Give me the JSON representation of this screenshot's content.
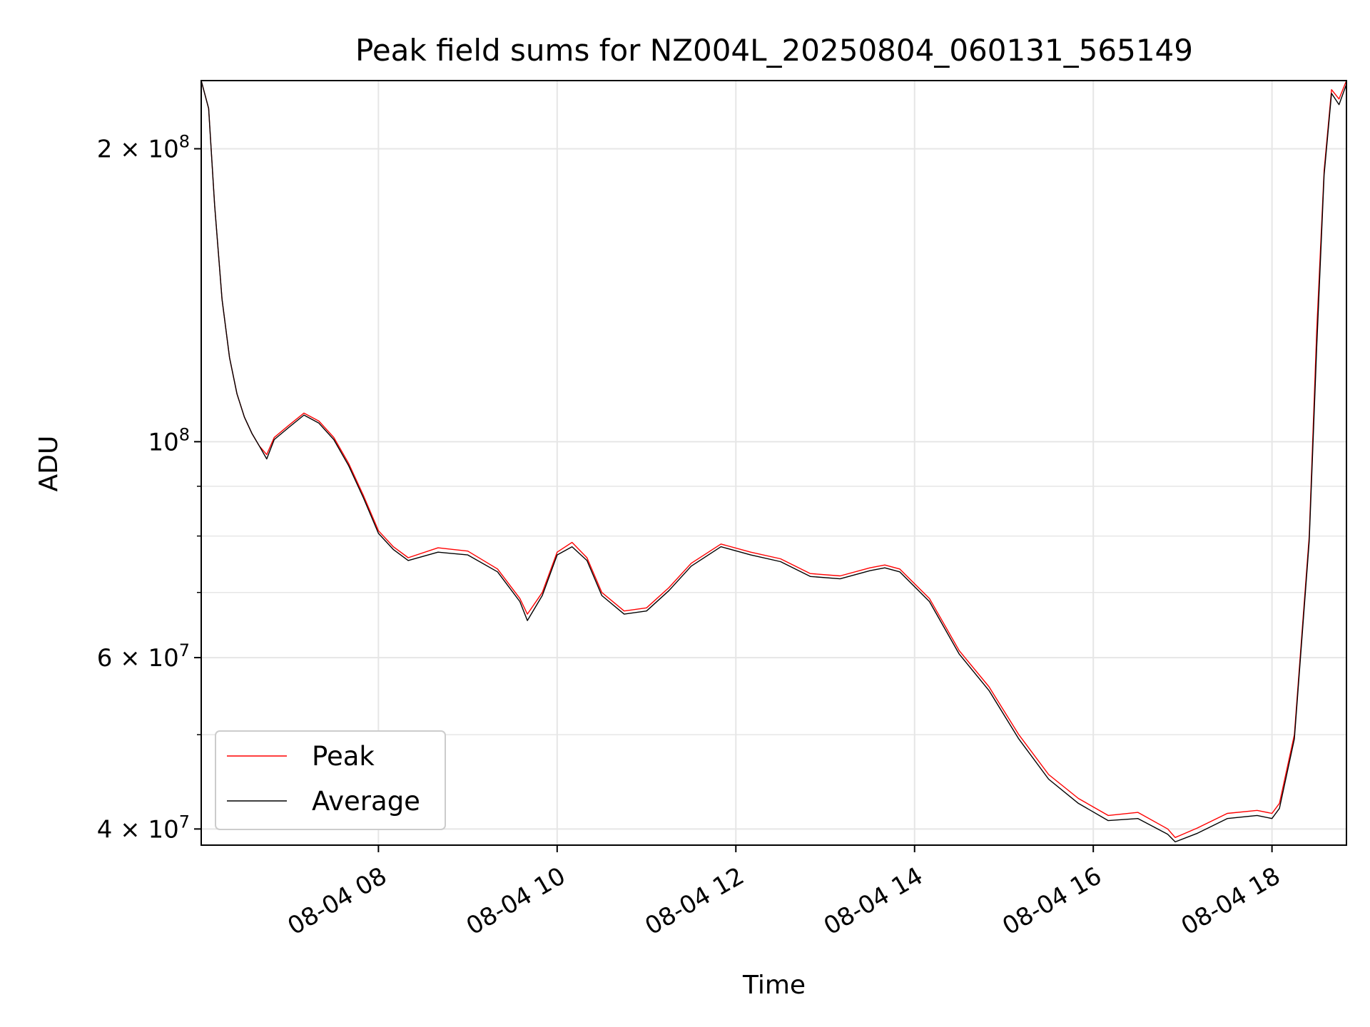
{
  "chart_data": {
    "type": "line",
    "title": "Peak field sums for NZ004L_20250804_060131_565149",
    "xlabel": "Time",
    "ylabel": "ADU",
    "x_ticks": [
      "08-04 08",
      "08-04 10",
      "08-04 12",
      "08-04 14",
      "08-04 16",
      "08-04 18"
    ],
    "y_ticks": [
      {
        "value": 40000000,
        "mantissa": "4",
        "exponent": "7"
      },
      {
        "value": 60000000,
        "mantissa": "6",
        "exponent": "7"
      },
      {
        "value": 100000000,
        "mantissa": "",
        "exponent": "8"
      },
      {
        "value": 200000000,
        "mantissa": "2",
        "exponent": "8"
      }
    ],
    "yscale": "log",
    "xlim": [
      "2025-08-04 06:01",
      "2025-08-04 18:50"
    ],
    "ylim": [
      38500000,
      235000000
    ],
    "grid": true,
    "legend_position": "lower-left",
    "colors": {
      "peak": "#ff0000",
      "average": "#000000",
      "grid": "#e6e6e6"
    },
    "series": [
      {
        "name": "Peak",
        "x": [
          "2025-08-04 06:01",
          "2025-08-04 06:06",
          "2025-08-04 06:10",
          "2025-08-04 06:15",
          "2025-08-04 06:20",
          "2025-08-04 06:25",
          "2025-08-04 06:30",
          "2025-08-04 06:35",
          "2025-08-04 06:40",
          "2025-08-04 06:45",
          "2025-08-04 06:50",
          "2025-08-04 07:00",
          "2025-08-04 07:10",
          "2025-08-04 07:20",
          "2025-08-04 07:30",
          "2025-08-04 07:40",
          "2025-08-04 07:50",
          "2025-08-04 08:00",
          "2025-08-04 08:10",
          "2025-08-04 08:20",
          "2025-08-04 08:40",
          "2025-08-04 09:00",
          "2025-08-04 09:20",
          "2025-08-04 09:35",
          "2025-08-04 09:40",
          "2025-08-04 09:50",
          "2025-08-04 10:00",
          "2025-08-04 10:10",
          "2025-08-04 10:20",
          "2025-08-04 10:30",
          "2025-08-04 10:45",
          "2025-08-04 11:00",
          "2025-08-04 11:15",
          "2025-08-04 11:30",
          "2025-08-04 11:50",
          "2025-08-04 12:10",
          "2025-08-04 12:30",
          "2025-08-04 12:50",
          "2025-08-04 13:10",
          "2025-08-04 13:30",
          "2025-08-04 13:40",
          "2025-08-04 13:50",
          "2025-08-04 14:10",
          "2025-08-04 14:30",
          "2025-08-04 14:50",
          "2025-08-04 15:10",
          "2025-08-04 15:30",
          "2025-08-04 15:50",
          "2025-08-04 16:10",
          "2025-08-04 16:30",
          "2025-08-04 16:50",
          "2025-08-04 16:55",
          "2025-08-04 17:10",
          "2025-08-04 17:30",
          "2025-08-04 17:50",
          "2025-08-04 18:00",
          "2025-08-04 18:05",
          "2025-08-04 18:15",
          "2025-08-04 18:25",
          "2025-08-04 18:30",
          "2025-08-04 18:35",
          "2025-08-04 18:40",
          "2025-08-04 18:45",
          "2025-08-04 18:50"
        ],
        "y": [
          235000000,
          220000000,
          175000000,
          140000000,
          122000000,
          112000000,
          106000000,
          102000000,
          99000000,
          97000000,
          101000000,
          104000000,
          107000000,
          105000000,
          101000000,
          95000000,
          88000000,
          81000000,
          78000000,
          76000000,
          77800000,
          77200000,
          74000000,
          69000000,
          66500000,
          70000000,
          77000000,
          78800000,
          76000000,
          70000000,
          67000000,
          67500000,
          70800000,
          75000000,
          78500000,
          77000000,
          75800000,
          73200000,
          72800000,
          74200000,
          74700000,
          74000000,
          69000000,
          61000000,
          56000000,
          50000000,
          45500000,
          43000000,
          41300000,
          41600000,
          40000000,
          39200000,
          40100000,
          41500000,
          41800000,
          41500000,
          42500000,
          50000000,
          80000000,
          130000000,
          190000000,
          230000000,
          225000000,
          235000000
        ]
      },
      {
        "name": "Average",
        "x": [
          "2025-08-04 06:01",
          "2025-08-04 06:06",
          "2025-08-04 06:10",
          "2025-08-04 06:15",
          "2025-08-04 06:20",
          "2025-08-04 06:25",
          "2025-08-04 06:30",
          "2025-08-04 06:35",
          "2025-08-04 06:40",
          "2025-08-04 06:45",
          "2025-08-04 06:50",
          "2025-08-04 07:00",
          "2025-08-04 07:10",
          "2025-08-04 07:20",
          "2025-08-04 07:30",
          "2025-08-04 07:40",
          "2025-08-04 07:50",
          "2025-08-04 08:00",
          "2025-08-04 08:10",
          "2025-08-04 08:20",
          "2025-08-04 08:40",
          "2025-08-04 09:00",
          "2025-08-04 09:20",
          "2025-08-04 09:35",
          "2025-08-04 09:40",
          "2025-08-04 09:50",
          "2025-08-04 10:00",
          "2025-08-04 10:10",
          "2025-08-04 10:20",
          "2025-08-04 10:30",
          "2025-08-04 10:45",
          "2025-08-04 11:00",
          "2025-08-04 11:15",
          "2025-08-04 11:30",
          "2025-08-04 11:50",
          "2025-08-04 12:10",
          "2025-08-04 12:30",
          "2025-08-04 12:50",
          "2025-08-04 13:10",
          "2025-08-04 13:30",
          "2025-08-04 13:40",
          "2025-08-04 13:50",
          "2025-08-04 14:10",
          "2025-08-04 14:30",
          "2025-08-04 14:50",
          "2025-08-04 15:10",
          "2025-08-04 15:30",
          "2025-08-04 15:50",
          "2025-08-04 16:10",
          "2025-08-04 16:30",
          "2025-08-04 16:50",
          "2025-08-04 16:55",
          "2025-08-04 17:10",
          "2025-08-04 17:30",
          "2025-08-04 17:50",
          "2025-08-04 18:00",
          "2025-08-04 18:05",
          "2025-08-04 18:15",
          "2025-08-04 18:25",
          "2025-08-04 18:30",
          "2025-08-04 18:35",
          "2025-08-04 18:40",
          "2025-08-04 18:45",
          "2025-08-04 18:50"
        ],
        "y": [
          235000000,
          220000000,
          175000000,
          140000000,
          122000000,
          112000000,
          106000000,
          102000000,
          99000000,
          96000000,
          100500000,
          103500000,
          106500000,
          104500000,
          100500000,
          94500000,
          87500000,
          80500000,
          77500000,
          75500000,
          77000000,
          76500000,
          73500000,
          68500000,
          65500000,
          69500000,
          76500000,
          78000000,
          75500000,
          69500000,
          66500000,
          67000000,
          70300000,
          74500000,
          78000000,
          76500000,
          75300000,
          72700000,
          72300000,
          73700000,
          74200000,
          73500000,
          68500000,
          60500000,
          55500000,
          49500000,
          45000000,
          42500000,
          40800000,
          41000000,
          39500000,
          38800000,
          39600000,
          41000000,
          41300000,
          41000000,
          42000000,
          49500000,
          79000000,
          125000000,
          188000000,
          228000000,
          222000000,
          233000000
        ]
      }
    ]
  }
}
